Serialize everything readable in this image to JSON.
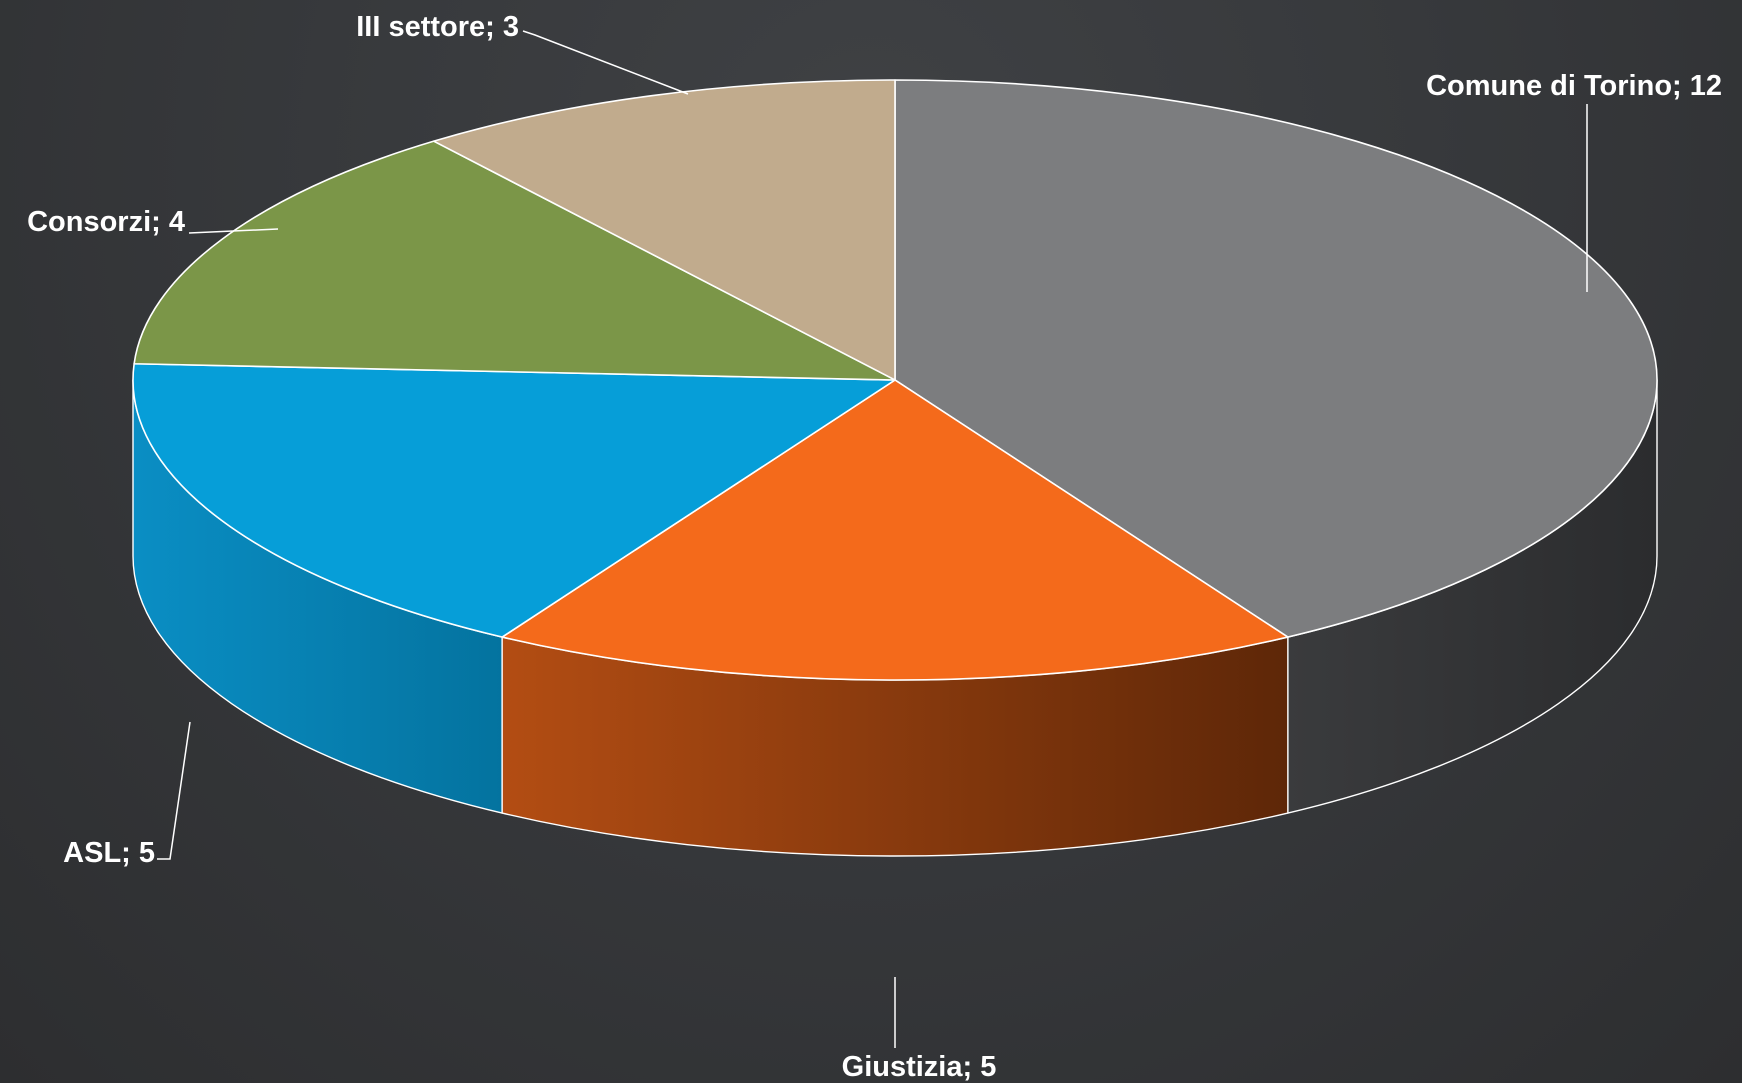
{
  "chart_data": {
    "type": "pie",
    "variant": "3d",
    "title": "",
    "label_format": "{name}; {value}",
    "legend": "none",
    "slices": [
      {
        "name": "Comune di Torino",
        "value": 12,
        "color": "#7c7d7f",
        "side_from": "#3a3b3d",
        "side_to": "#2b2c2e"
      },
      {
        "name": "Giustizia",
        "value": 5,
        "color": "#f46a1b",
        "side_from": "#b34d13",
        "side_to": "#5e2708"
      },
      {
        "name": "ASL",
        "value": 5,
        "color": "#069ed8",
        "side_from": "#0a8ec4",
        "side_to": "#04739f"
      },
      {
        "name": "Consorzi",
        "value": 4,
        "color": "#7b9648",
        "side_from": "#5d7236",
        "side_to": "#4a5c2b"
      },
      {
        "name": "III settore",
        "value": 3,
        "color": "#c1ab8d",
        "side_from": "#8f7f69",
        "side_to": "#7a6b58"
      }
    ]
  }
}
